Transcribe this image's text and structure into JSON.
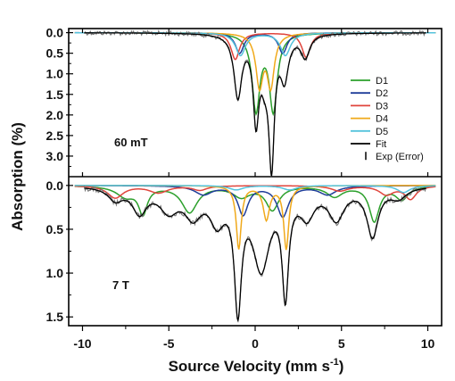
{
  "chart_data": {
    "type": "line",
    "title": "",
    "xlabel": "Source Velocity (mm s-1)",
    "xlabel_text": "Source Velocity (mm s",
    "xlabel_sup": "-1",
    "xlabel_close": ")",
    "ylabel": "Absorption (%)",
    "xlim": [
      -10.8,
      10.8
    ],
    "xticks": [
      -10,
      -5,
      0,
      5,
      10
    ],
    "xtick_labels": [
      "-10",
      "-5",
      "0",
      "5",
      "10"
    ],
    "grid": false,
    "legend": {
      "placement": "right, inside top panel",
      "entries": [
        {
          "label": "D1",
          "color": "#2ca02c",
          "style": "line"
        },
        {
          "label": "D2",
          "color": "#1f3d99",
          "style": "line"
        },
        {
          "label": "D3",
          "color": "#e0453c",
          "style": "line"
        },
        {
          "label": "D4",
          "color": "#f0a91a",
          "style": "line"
        },
        {
          "label": "D5",
          "color": "#55c3dc",
          "style": "line"
        },
        {
          "label": "Fit",
          "color": "#000000",
          "style": "line"
        },
        {
          "label": "Exp (Error)",
          "color": "#000000",
          "style": "errorbar"
        }
      ]
    },
    "panels": [
      {
        "label": "60 mT",
        "ylim": [
          -0.1,
          3.5
        ],
        "yticks": [
          0.0,
          0.5,
          1.0,
          1.5,
          2.0,
          2.5,
          3.0
        ],
        "ytick_labels": [
          "0.0",
          "0.5",
          "1.0",
          "1.5",
          "2.0",
          "2.5",
          "3.0"
        ],
        "series": [
          {
            "name": "D1",
            "color": "#2ca02c",
            "baseline": 0.0,
            "peaks": [
              {
                "x": 0.05,
                "depth": 1.85,
                "width": 0.55
              },
              {
                "x": 1.05,
                "depth": 1.85,
                "width": 0.55
              }
            ]
          },
          {
            "name": "D2",
            "color": "#1f3d99",
            "baseline": 0.0,
            "peaks": [
              {
                "x": -0.9,
                "depth": 0.5,
                "width": 0.6
              },
              {
                "x": 1.6,
                "depth": 0.5,
                "width": 0.6
              }
            ]
          },
          {
            "name": "D3",
            "color": "#e0453c",
            "baseline": 0.0,
            "peaks": [
              {
                "x": -1.15,
                "depth": 0.65,
                "width": 0.6
              },
              {
                "x": 2.95,
                "depth": 0.6,
                "width": 0.6
              }
            ]
          },
          {
            "name": "D4",
            "color": "#f0a91a",
            "baseline": 0.0,
            "peaks": [
              {
                "x": 0.25,
                "depth": 1.25,
                "width": 0.5
              },
              {
                "x": 0.9,
                "depth": 1.25,
                "width": 0.5
              }
            ]
          },
          {
            "name": "D5",
            "color": "#55c3dc",
            "baseline": 0.0,
            "peaks": [
              {
                "x": -0.85,
                "depth": 0.55,
                "width": 0.7
              },
              {
                "x": 1.75,
                "depth": 0.55,
                "width": 0.7
              }
            ]
          }
        ],
        "fit_peaks": [
          {
            "x": -1.0,
            "depth": 1.5,
            "width": 0.55
          },
          {
            "x": 0.05,
            "depth": 1.95,
            "width": 0.4
          },
          {
            "x": 0.55,
            "depth": 0.8,
            "width": 0.6
          },
          {
            "x": 0.95,
            "depth": 2.95,
            "width": 0.38
          },
          {
            "x": 1.7,
            "depth": 1.0,
            "width": 0.55
          },
          {
            "x": 2.9,
            "depth": 0.55,
            "width": 0.6
          }
        ]
      },
      {
        "label": "7 T",
        "ylim": [
          -0.1,
          1.6
        ],
        "yticks": [
          0.0,
          0.5,
          1.0,
          1.5
        ],
        "ytick_labels": [
          "0.0",
          "0.5",
          "1.0",
          "1.5"
        ],
        "series": [
          {
            "name": "D1",
            "color": "#2ca02c",
            "baseline": 0.0,
            "peaks": [
              {
                "x": -7.5,
                "depth": 0.12,
                "width": 1.3
              },
              {
                "x": -6.5,
                "depth": 0.3,
                "width": 0.6
              },
              {
                "x": -3.8,
                "depth": 0.3,
                "width": 1.1
              },
              {
                "x": -0.8,
                "depth": 0.12,
                "width": 1.2
              },
              {
                "x": 1.0,
                "depth": 0.27,
                "width": 0.9
              },
              {
                "x": 4.6,
                "depth": 0.12,
                "width": 1.1
              },
              {
                "x": 6.9,
                "depth": 0.4,
                "width": 0.7
              },
              {
                "x": 8.5,
                "depth": 0.15,
                "width": 0.9
              }
            ]
          },
          {
            "name": "D2",
            "color": "#1f3d99",
            "baseline": 0.0,
            "peaks": [
              {
                "x": -3.0,
                "depth": 0.1,
                "width": 1.2
              },
              {
                "x": -0.7,
                "depth": 0.33,
                "width": 0.7
              },
              {
                "x": 1.6,
                "depth": 0.35,
                "width": 0.8
              },
              {
                "x": 4.2,
                "depth": 0.1,
                "width": 1.2
              }
            ]
          },
          {
            "name": "D3",
            "color": "#e0453c",
            "baseline": 0.0,
            "peaks": [
              {
                "x": -8.1,
                "depth": 0.14,
                "width": 1.1
              },
              {
                "x": -5.6,
                "depth": 0.08,
                "width": 1.3
              },
              {
                "x": -3.2,
                "depth": 0.05,
                "width": 1.0
              },
              {
                "x": 4.9,
                "depth": 0.06,
                "width": 1.2
              },
              {
                "x": 7.6,
                "depth": 0.1,
                "width": 1.0
              },
              {
                "x": 9.0,
                "depth": 0.15,
                "width": 0.8
              }
            ]
          },
          {
            "name": "D4",
            "color": "#f0a91a",
            "baseline": 0.0,
            "peaks": [
              {
                "x": -0.95,
                "depth": 0.72,
                "width": 0.35
              },
              {
                "x": 0.65,
                "depth": 0.38,
                "width": 0.45
              },
              {
                "x": 1.8,
                "depth": 0.72,
                "width": 0.35
              }
            ]
          },
          {
            "name": "D5",
            "color": "#55c3dc",
            "baseline": 0.0,
            "peaks": [
              {
                "x": -1.1,
                "depth": 0.05,
                "width": 1.0
              },
              {
                "x": 2.0,
                "depth": 0.05,
                "width": 1.0
              },
              {
                "x": 8.6,
                "depth": 0.08,
                "width": 0.9
              }
            ]
          }
        ],
        "fit_peaks": [
          {
            "x": -8.1,
            "depth": 0.14,
            "width": 1.0
          },
          {
            "x": -6.7,
            "depth": 0.28,
            "width": 1.0
          },
          {
            "x": -5.0,
            "depth": 0.25,
            "width": 1.3
          },
          {
            "x": -3.6,
            "depth": 0.3,
            "width": 1.2
          },
          {
            "x": -2.2,
            "depth": 0.35,
            "width": 1.0
          },
          {
            "x": -1.0,
            "depth": 1.3,
            "width": 0.5
          },
          {
            "x": 0.35,
            "depth": 0.9,
            "width": 1.2
          },
          {
            "x": 1.75,
            "depth": 1.15,
            "width": 0.45
          },
          {
            "x": 3.0,
            "depth": 0.3,
            "width": 1.0
          },
          {
            "x": 4.7,
            "depth": 0.35,
            "width": 1.1
          },
          {
            "x": 6.8,
            "depth": 0.55,
            "width": 0.8
          },
          {
            "x": 8.3,
            "depth": 0.12,
            "width": 1.1
          }
        ]
      }
    ]
  }
}
